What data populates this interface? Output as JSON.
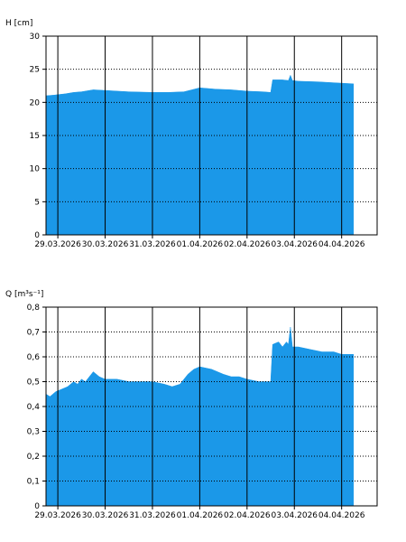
{
  "colors": {
    "fill": "#1b98e8",
    "axis": "#000000",
    "grid": "#000000",
    "background": "#ffffff"
  },
  "chart_data": [
    {
      "type": "area",
      "title": "",
      "xlabel": "",
      "ylabel": "H [cm]",
      "ylim": [
        0,
        30
      ],
      "yticks": [
        "0",
        "5",
        "10",
        "15",
        "20",
        "25",
        "30"
      ],
      "xticks": [
        "29.03.2026",
        "30.03.2026",
        "31.03.2026",
        "01.04.2026",
        "02.04.2026",
        "03.04.2026",
        "04.04.2026"
      ],
      "xrange": [
        "28.03.2026 18:00",
        "04.04.2026 18:00"
      ],
      "grid": "dotted horizontal, solid vertical at midnight",
      "series": [
        {
          "x": [
            "28.03.2026 18:00",
            "28.03.2026 22:00",
            "29.03.2026 04:00",
            "29.03.2026 08:00",
            "29.03.2026 12:00",
            "29.03.2026 18:00",
            "30.03.2026 00:00",
            "30.03.2026 12:00",
            "31.03.2026 00:00",
            "31.03.2026 08:00",
            "31.03.2026 16:00",
            "31.03.2026 20:00",
            "01.04.2026 00:00",
            "01.04.2026 08:00",
            "01.04.2026 16:00",
            "02.04.2026 00:00",
            "02.04.2026 08:00",
            "02.04.2026 12:00",
            "02.04.2026 13:00",
            "02.04.2026 18:00",
            "02.04.2026 21:00",
            "02.04.2026 22:00",
            "02.04.2026 23:00",
            "03.04.2026 02:00",
            "03.04.2026 12:00",
            "04.04.2026 00:00",
            "04.04.2026 06:00"
          ],
          "values": [
            21.0,
            21.1,
            21.3,
            21.5,
            21.6,
            21.9,
            21.8,
            21.6,
            21.5,
            21.5,
            21.6,
            21.9,
            22.2,
            22.0,
            21.9,
            21.7,
            21.6,
            21.5,
            23.4,
            23.4,
            23.3,
            24.1,
            23.3,
            23.2,
            23.1,
            22.9,
            22.8
          ]
        }
      ]
    },
    {
      "type": "area",
      "title": "",
      "xlabel": "",
      "ylabel": "Q [m³s⁻¹]",
      "ylim": [
        0,
        0.8
      ],
      "yticks": [
        "0",
        "0,1",
        "0,2",
        "0,3",
        "0,4",
        "0,5",
        "0,6",
        "0,7",
        "0,8"
      ],
      "xticks": [
        "29.03.2026",
        "30.03.2026",
        "31.03.2026",
        "01.04.2026",
        "02.04.2026",
        "03.04.2026",
        "04.04.2026"
      ],
      "xrange": [
        "28.03.2026 18:00",
        "04.04.2026 18:00"
      ],
      "grid": "dotted horizontal, solid vertical at midnight",
      "series": [
        {
          "x": [
            "28.03.2026 18:00",
            "28.03.2026 20:00",
            "28.03.2026 23:00",
            "29.03.2026 02:00",
            "29.03.2026 05:00",
            "29.03.2026 08:00",
            "29.03.2026 10:00",
            "29.03.2026 12:00",
            "29.03.2026 14:00",
            "29.03.2026 18:00",
            "29.03.2026 21:00",
            "30.03.2026 00:00",
            "30.03.2026 06:00",
            "30.03.2026 12:00",
            "30.03.2026 18:00",
            "31.03.2026 00:00",
            "31.03.2026 06:00",
            "31.03.2026 10:00",
            "31.03.2026 14:00",
            "31.03.2026 18:00",
            "31.03.2026 21:00",
            "01.04.2026 00:00",
            "01.04.2026 06:00",
            "01.04.2026 12:00",
            "01.04.2026 16:00",
            "01.04.2026 20:00",
            "02.04.2026 00:00",
            "02.04.2026 06:00",
            "02.04.2026 10:00",
            "02.04.2026 12:00",
            "02.04.2026 13:00",
            "02.04.2026 16:00",
            "02.04.2026 18:00",
            "02.04.2026 20:00",
            "02.04.2026 21:00",
            "02.04.2026 22:00",
            "02.04.2026 23:00",
            "03.04.2026 02:00",
            "03.04.2026 08:00",
            "03.04.2026 14:00",
            "03.04.2026 20:00",
            "04.04.2026 00:00",
            "04.04.2026 06:00"
          ],
          "values": [
            0.45,
            0.44,
            0.46,
            0.47,
            0.48,
            0.5,
            0.49,
            0.51,
            0.5,
            0.54,
            0.52,
            0.51,
            0.51,
            0.5,
            0.5,
            0.5,
            0.49,
            0.48,
            0.49,
            0.53,
            0.55,
            0.56,
            0.55,
            0.53,
            0.52,
            0.52,
            0.51,
            0.5,
            0.5,
            0.5,
            0.65,
            0.66,
            0.64,
            0.66,
            0.65,
            0.72,
            0.64,
            0.64,
            0.63,
            0.62,
            0.62,
            0.61,
            0.61
          ]
        }
      ]
    }
  ]
}
